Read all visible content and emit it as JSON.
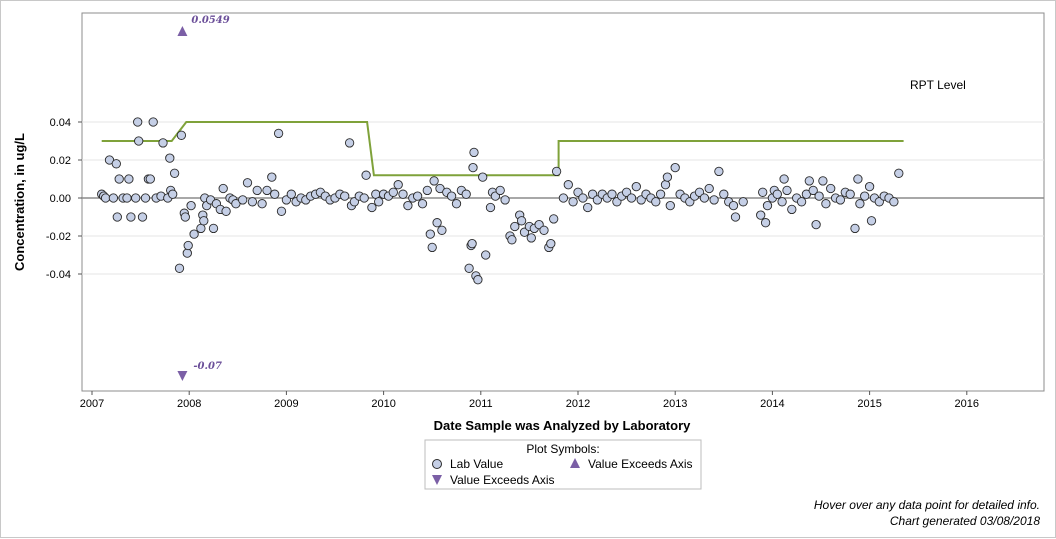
{
  "chart_data": {
    "type": "scatter",
    "title": "",
    "xlabel": "Date Sample was Analyzed by Laboratory",
    "ylabel": "Concentration, in ug/L",
    "xlim": [
      2007.0,
      2016.8
    ],
    "ylim": [
      -0.05,
      0.05
    ],
    "x_ticks": [
      "2007",
      "2008",
      "2009",
      "2010",
      "2011",
      "2012",
      "2013",
      "2014",
      "2015",
      "2016"
    ],
    "y_ticks": [
      "0.04",
      "0.02",
      "0.00",
      "-0.02",
      "-0.04"
    ],
    "grid": "horizontal",
    "zero_line": 0.0,
    "rpt_label": "RPT Level",
    "rpt_level": [
      [
        2007.1,
        0.03
      ],
      [
        2007.82,
        0.03
      ],
      [
        2007.97,
        0.04
      ],
      [
        2009.83,
        0.04
      ],
      [
        2009.9,
        0.012
      ],
      [
        2011.8,
        0.012
      ],
      [
        2011.8,
        0.03
      ],
      [
        2015.35,
        0.03
      ]
    ],
    "exceeds": [
      {
        "x": 2007.93,
        "y_label": "0.0549",
        "direction": "up"
      },
      {
        "x": 2007.93,
        "y_label": "-0.07",
        "direction": "down"
      }
    ],
    "legend": {
      "title": "Plot Symbols:",
      "items": [
        "Lab Value",
        "Value Exceeds Axis",
        "Value Exceeds Axis"
      ]
    },
    "series": [
      {
        "name": "Lab Value",
        "points": [
          [
            2007.1,
            0.002
          ],
          [
            2007.12,
            0.001
          ],
          [
            2007.14,
            0.0
          ],
          [
            2007.18,
            0.02
          ],
          [
            2007.22,
            0.0
          ],
          [
            2007.25,
            0.018
          ],
          [
            2007.28,
            0.01
          ],
          [
            2007.26,
            -0.01
          ],
          [
            2007.32,
            0.0
          ],
          [
            2007.36,
            0.0
          ],
          [
            2007.38,
            0.01
          ],
          [
            2007.4,
            -0.01
          ],
          [
            2007.45,
            0.0
          ],
          [
            2007.47,
            0.04
          ],
          [
            2007.48,
            0.03
          ],
          [
            2007.52,
            -0.01
          ],
          [
            2007.55,
            0.0
          ],
          [
            2007.58,
            0.01
          ],
          [
            2007.6,
            0.01
          ],
          [
            2007.63,
            0.04
          ],
          [
            2007.66,
            0.0
          ],
          [
            2007.71,
            0.001
          ],
          [
            2007.73,
            0.029
          ],
          [
            2007.78,
            0.0
          ],
          [
            2007.8,
            0.021
          ],
          [
            2007.81,
            0.004
          ],
          [
            2007.83,
            0.002
          ],
          [
            2007.85,
            0.013
          ],
          [
            2007.9,
            -0.037
          ],
          [
            2007.92,
            0.033
          ],
          [
            2007.95,
            -0.008
          ],
          [
            2007.96,
            -0.01
          ],
          [
            2007.98,
            -0.029
          ],
          [
            2007.99,
            -0.025
          ],
          [
            2008.02,
            -0.004
          ],
          [
            2008.05,
            -0.019
          ],
          [
            2008.12,
            -0.016
          ],
          [
            2008.14,
            -0.009
          ],
          [
            2008.15,
            -0.012
          ],
          [
            2008.16,
            0.0
          ],
          [
            2008.18,
            -0.004
          ],
          [
            2008.22,
            -0.001
          ],
          [
            2008.25,
            -0.016
          ],
          [
            2008.28,
            -0.003
          ],
          [
            2008.32,
            -0.006
          ],
          [
            2008.35,
            0.005
          ],
          [
            2008.38,
            -0.007
          ],
          [
            2008.42,
            0.0
          ],
          [
            2008.45,
            -0.001
          ],
          [
            2008.48,
            -0.003
          ],
          [
            2008.55,
            -0.001
          ],
          [
            2008.6,
            0.008
          ],
          [
            2008.65,
            -0.002
          ],
          [
            2008.7,
            0.004
          ],
          [
            2008.75,
            -0.003
          ],
          [
            2008.8,
            0.004
          ],
          [
            2008.85,
            0.011
          ],
          [
            2008.88,
            0.002
          ],
          [
            2008.92,
            0.034
          ],
          [
            2008.95,
            -0.007
          ],
          [
            2009.0,
            -0.001
          ],
          [
            2009.05,
            0.002
          ],
          [
            2009.1,
            -0.002
          ],
          [
            2009.15,
            0.0
          ],
          [
            2009.2,
            -0.001
          ],
          [
            2009.25,
            0.001
          ],
          [
            2009.3,
            0.002
          ],
          [
            2009.35,
            0.003
          ],
          [
            2009.4,
            0.001
          ],
          [
            2009.45,
            -0.001
          ],
          [
            2009.5,
            0.0
          ],
          [
            2009.55,
            0.002
          ],
          [
            2009.6,
            0.001
          ],
          [
            2009.65,
            0.029
          ],
          [
            2009.67,
            -0.004
          ],
          [
            2009.7,
            -0.002
          ],
          [
            2009.75,
            0.001
          ],
          [
            2009.8,
            0.0
          ],
          [
            2009.82,
            0.012
          ],
          [
            2009.88,
            -0.005
          ],
          [
            2009.92,
            0.002
          ],
          [
            2009.95,
            -0.002
          ],
          [
            2010.0,
            0.002
          ],
          [
            2010.05,
            0.001
          ],
          [
            2010.1,
            0.003
          ],
          [
            2010.15,
            0.007
          ],
          [
            2010.2,
            0.002
          ],
          [
            2010.25,
            -0.004
          ],
          [
            2010.3,
            0.0
          ],
          [
            2010.35,
            0.001
          ],
          [
            2010.4,
            -0.003
          ],
          [
            2010.45,
            0.004
          ],
          [
            2010.48,
            -0.019
          ],
          [
            2010.5,
            -0.026
          ],
          [
            2010.52,
            0.009
          ],
          [
            2010.55,
            -0.013
          ],
          [
            2010.58,
            0.005
          ],
          [
            2010.6,
            -0.017
          ],
          [
            2010.65,
            0.003
          ],
          [
            2010.7,
            0.001
          ],
          [
            2010.75,
            -0.003
          ],
          [
            2010.8,
            0.004
          ],
          [
            2010.85,
            0.002
          ],
          [
            2010.88,
            -0.037
          ],
          [
            2010.9,
            -0.025
          ],
          [
            2010.91,
            -0.024
          ],
          [
            2010.92,
            0.016
          ],
          [
            2010.93,
            0.024
          ],
          [
            2010.95,
            -0.041
          ],
          [
            2010.97,
            -0.043
          ],
          [
            2011.02,
            0.011
          ],
          [
            2011.05,
            -0.03
          ],
          [
            2011.1,
            -0.005
          ],
          [
            2011.12,
            0.003
          ],
          [
            2011.15,
            0.001
          ],
          [
            2011.2,
            0.004
          ],
          [
            2011.25,
            -0.001
          ],
          [
            2011.3,
            -0.02
          ],
          [
            2011.32,
            -0.022
          ],
          [
            2011.35,
            -0.015
          ],
          [
            2011.4,
            -0.009
          ],
          [
            2011.42,
            -0.012
          ],
          [
            2011.45,
            -0.018
          ],
          [
            2011.5,
            -0.015
          ],
          [
            2011.52,
            -0.021
          ],
          [
            2011.55,
            -0.016
          ],
          [
            2011.6,
            -0.014
          ],
          [
            2011.65,
            -0.017
          ],
          [
            2011.7,
            -0.026
          ],
          [
            2011.72,
            -0.024
          ],
          [
            2011.75,
            -0.011
          ],
          [
            2011.78,
            0.014
          ],
          [
            2011.85,
            0.0
          ],
          [
            2011.9,
            0.007
          ],
          [
            2011.95,
            -0.002
          ],
          [
            2012.0,
            0.003
          ],
          [
            2012.05,
            0.0
          ],
          [
            2012.1,
            -0.005
          ],
          [
            2012.15,
            0.002
          ],
          [
            2012.2,
            -0.001
          ],
          [
            2012.25,
            0.002
          ],
          [
            2012.3,
            0.0
          ],
          [
            2012.35,
            0.002
          ],
          [
            2012.4,
            -0.002
          ],
          [
            2012.45,
            0.001
          ],
          [
            2012.5,
            0.003
          ],
          [
            2012.55,
            0.0
          ],
          [
            2012.6,
            0.006
          ],
          [
            2012.65,
            -0.001
          ],
          [
            2012.7,
            0.002
          ],
          [
            2012.75,
            0.0
          ],
          [
            2012.8,
            -0.002
          ],
          [
            2012.85,
            0.002
          ],
          [
            2012.9,
            0.007
          ],
          [
            2012.92,
            0.011
          ],
          [
            2012.95,
            -0.004
          ],
          [
            2013.0,
            0.016
          ],
          [
            2013.05,
            0.002
          ],
          [
            2013.1,
            0.0
          ],
          [
            2013.15,
            -0.002
          ],
          [
            2013.2,
            0.001
          ],
          [
            2013.25,
            0.003
          ],
          [
            2013.3,
            0.0
          ],
          [
            2013.35,
            0.005
          ],
          [
            2013.4,
            -0.001
          ],
          [
            2013.45,
            0.014
          ],
          [
            2013.5,
            0.002
          ],
          [
            2013.55,
            -0.002
          ],
          [
            2013.6,
            -0.004
          ],
          [
            2013.62,
            -0.01
          ],
          [
            2013.7,
            -0.002
          ],
          [
            2013.88,
            -0.009
          ],
          [
            2013.9,
            0.003
          ],
          [
            2013.93,
            -0.013
          ],
          [
            2013.95,
            -0.004
          ],
          [
            2014.0,
            0.0
          ],
          [
            2014.02,
            0.004
          ],
          [
            2014.05,
            0.002
          ],
          [
            2014.1,
            -0.002
          ],
          [
            2014.12,
            0.01
          ],
          [
            2014.15,
            0.004
          ],
          [
            2014.2,
            -0.006
          ],
          [
            2014.25,
            0.0
          ],
          [
            2014.3,
            -0.002
          ],
          [
            2014.35,
            0.002
          ],
          [
            2014.38,
            0.009
          ],
          [
            2014.42,
            0.004
          ],
          [
            2014.45,
            -0.014
          ],
          [
            2014.48,
            0.001
          ],
          [
            2014.52,
            0.009
          ],
          [
            2014.55,
            -0.003
          ],
          [
            2014.6,
            0.005
          ],
          [
            2014.65,
            0.0
          ],
          [
            2014.7,
            -0.001
          ],
          [
            2014.75,
            0.003
          ],
          [
            2014.8,
            0.002
          ],
          [
            2014.85,
            -0.016
          ],
          [
            2014.88,
            0.01
          ],
          [
            2014.9,
            -0.003
          ],
          [
            2014.95,
            0.001
          ],
          [
            2015.0,
            0.006
          ],
          [
            2015.02,
            -0.012
          ],
          [
            2015.05,
            0.0
          ],
          [
            2015.1,
            -0.002
          ],
          [
            2015.15,
            0.001
          ],
          [
            2015.2,
            0.0
          ],
          [
            2015.25,
            -0.002
          ],
          [
            2015.3,
            0.013
          ]
        ]
      }
    ]
  },
  "footer": {
    "hover_note": "Hover over any data point for detailed info.",
    "generated": "Chart generated 03/08/2018"
  },
  "colors": {
    "marker_fill": "#c5cfe6",
    "marker_stroke": "#2a2a2a",
    "rpt_line": "#7fa23a",
    "exceed_marker": "#7b5fa6",
    "zero_line": "#8c8c8c",
    "grid": "#e6e6e6"
  }
}
